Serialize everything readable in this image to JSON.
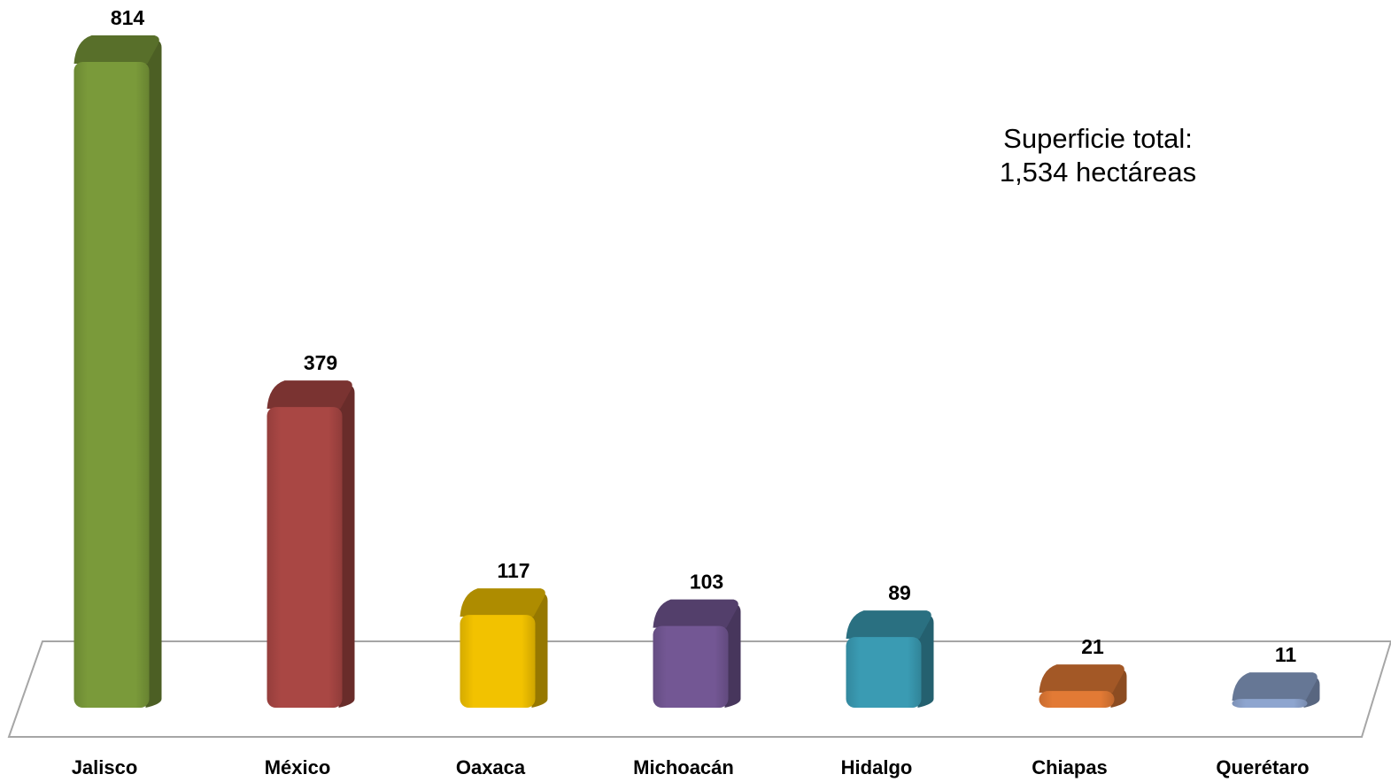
{
  "chart_data": {
    "type": "bar",
    "categories": [
      "Jalisco",
      "México",
      "Oaxaca",
      "Michoacán",
      "Hidalgo",
      "Chiapas",
      "Querétaro"
    ],
    "values": [
      814,
      379,
      117,
      103,
      89,
      21,
      11
    ],
    "value_labels": [
      "814",
      "379",
      "117",
      "103",
      "89",
      "21",
      "11"
    ],
    "colors": [
      "#7a9a3a",
      "#a94744",
      "#f2c200",
      "#735794",
      "#3a9bb3",
      "#e27a35",
      "#8ea5cf"
    ],
    "annotation": {
      "line1": "Superficie total:",
      "line2": "1,534 hectáreas"
    },
    "title": "",
    "xlabel": "",
    "ylabel": "",
    "ylim": [
      0,
      814
    ],
    "grid": false,
    "legend": "none",
    "style": "3d-rounded-bars"
  }
}
